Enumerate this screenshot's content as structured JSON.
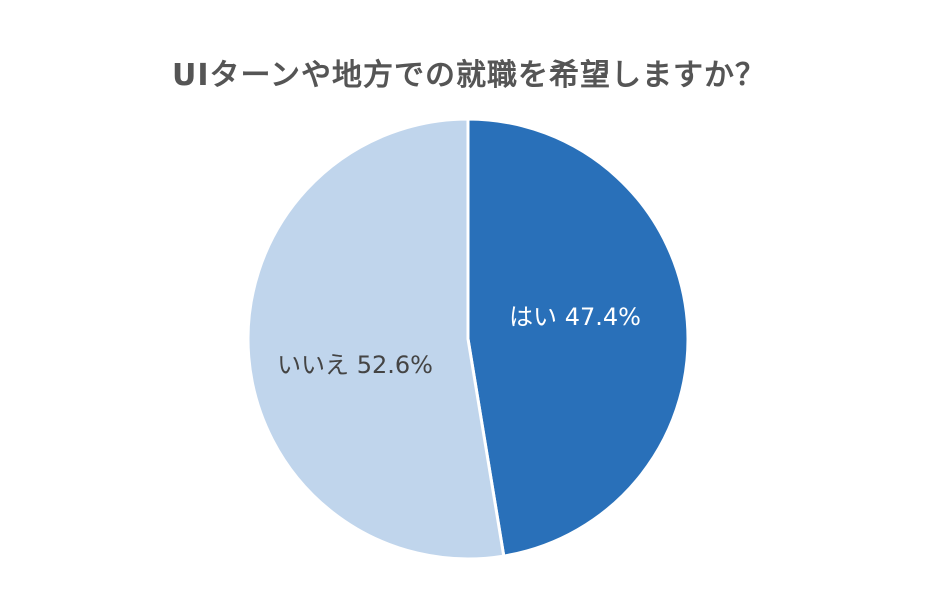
{
  "chart_data": {
    "type": "pie",
    "title": "UIターンや地方での就職を希望しますか？",
    "slices": [
      {
        "label": "はい",
        "value": 47.4,
        "display": "はい 47.4%",
        "color": "#2970b9",
        "label_color": "#ffffff"
      },
      {
        "label": "いいえ",
        "value": 52.6,
        "display": "いいえ 52.6%",
        "color": "#c0d5ec",
        "label_color": "#444444"
      }
    ],
    "start_angle": "12 o'clock",
    "direction": "clockwise",
    "legend": "none"
  }
}
